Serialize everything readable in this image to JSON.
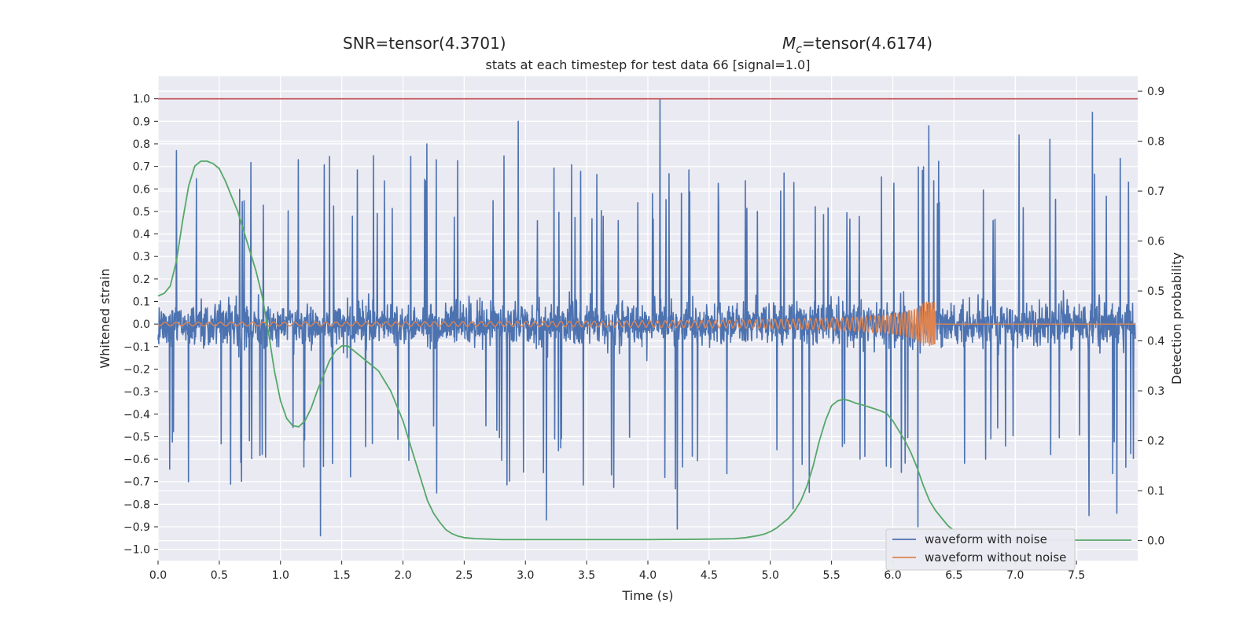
{
  "colors": {
    "background": "#eaeaf2",
    "grid": "#ffffff",
    "noisy": "#4c72b0",
    "clean": "#dd8452",
    "probability": "#55a868",
    "threshold": "#c44e52"
  },
  "chart_data": {
    "type": "line",
    "header_left": "SNR=tensor(4.3701)",
    "header_right_symbol": "M",
    "header_right_subscript": "c",
    "header_right_value": "=tensor(4.6174)",
    "title": "stats at each timestep for test data 66 [signal=1.0]",
    "xlabel": "Time (s)",
    "ylabel": "Whitened strain",
    "y2label": "Detection probability",
    "xlim": [
      0.0,
      8.0
    ],
    "ylim": [
      -1.05,
      1.1
    ],
    "y2lim": [
      -0.04,
      0.93
    ],
    "xticks": [
      "0.0",
      "0.5",
      "1.0",
      "1.5",
      "2.0",
      "2.5",
      "3.0",
      "3.5",
      "4.0",
      "4.5",
      "5.0",
      "5.5",
      "6.0",
      "6.5",
      "7.0",
      "7.5"
    ],
    "yticks": [
      "1.0",
      "0.9",
      "0.8",
      "0.7",
      "0.6",
      "0.5",
      "0.4",
      "0.3",
      "0.2",
      "0.1",
      "0.0",
      "−0.1",
      "−0.2",
      "−0.3",
      "−0.4",
      "−0.5",
      "−0.6",
      "−0.7",
      "−0.8",
      "−0.9",
      "−1.0"
    ],
    "y2ticks": [
      "0.9",
      "0.8",
      "0.7",
      "0.6",
      "0.5",
      "0.4",
      "0.3",
      "0.2",
      "0.1",
      "0.0"
    ],
    "grid": true,
    "legend_position": "lower-right",
    "threshold_line": {
      "y": 1.0
    },
    "series": [
      {
        "name": "waveform with noise",
        "axis": "left",
        "typical_amplitude": 0.38,
        "peaks": [
          {
            "x": 4.11,
            "y": 1.0
          },
          {
            "x": 7.65,
            "y": 0.94
          },
          {
            "x": 2.95,
            "y": 0.9
          },
          {
            "x": 6.31,
            "y": 0.88
          },
          {
            "x": 2.2,
            "y": 0.8
          },
          {
            "x": 7.3,
            "y": 0.82
          },
          {
            "x": 7.05,
            "y": 0.84
          },
          {
            "x": 0.15,
            "y": 0.77
          },
          {
            "x": 1.33,
            "y": -0.94
          },
          {
            "x": 4.25,
            "y": -0.91
          },
          {
            "x": 6.22,
            "y": -0.9
          },
          {
            "x": 7.62,
            "y": -0.85
          },
          {
            "x": 7.85,
            "y": -0.84
          },
          {
            "x": 5.2,
            "y": -0.82
          },
          {
            "x": 3.18,
            "y": -0.87
          },
          {
            "x": 0.25,
            "y": -0.7
          },
          {
            "x": 2.28,
            "y": -0.75
          }
        ]
      },
      {
        "name": "waveform without noise",
        "axis": "left",
        "chirp": {
          "start_amplitude": 0.008,
          "merger_time": 6.35,
          "merger_amplitude": 0.1,
          "post_merger_value": 0.0
        }
      },
      {
        "name": "",
        "axis": "right",
        "x": [
          0.0,
          0.05,
          0.1,
          0.15,
          0.2,
          0.25,
          0.3,
          0.35,
          0.4,
          0.45,
          0.5,
          0.55,
          0.6,
          0.65,
          0.7,
          0.75,
          0.8,
          0.85,
          0.9,
          0.95,
          1.0,
          1.05,
          1.1,
          1.15,
          1.2,
          1.25,
          1.3,
          1.35,
          1.4,
          1.45,
          1.5,
          1.55,
          1.6,
          1.65,
          1.7,
          1.75,
          1.8,
          1.85,
          1.9,
          1.95,
          2.0,
          2.05,
          2.1,
          2.15,
          2.2,
          2.25,
          2.3,
          2.35,
          2.4,
          2.45,
          2.5,
          2.6,
          2.7,
          2.8,
          3.0,
          3.5,
          4.0,
          4.5,
          4.7,
          4.8,
          4.9,
          4.95,
          5.0,
          5.05,
          5.1,
          5.15,
          5.2,
          5.25,
          5.3,
          5.35,
          5.4,
          5.45,
          5.5,
          5.55,
          5.6,
          5.65,
          5.7,
          5.75,
          5.8,
          5.85,
          5.9,
          5.95,
          6.0,
          6.05,
          6.1,
          6.15,
          6.2,
          6.25,
          6.3,
          6.35,
          6.4,
          6.45,
          6.5,
          6.55,
          6.6,
          6.7,
          6.8,
          7.0,
          7.5,
          7.95
        ],
        "values": [
          0.49,
          0.495,
          0.51,
          0.56,
          0.64,
          0.71,
          0.75,
          0.76,
          0.76,
          0.755,
          0.745,
          0.72,
          0.69,
          0.66,
          0.62,
          0.58,
          0.54,
          0.49,
          0.42,
          0.34,
          0.28,
          0.245,
          0.23,
          0.228,
          0.24,
          0.265,
          0.3,
          0.33,
          0.36,
          0.38,
          0.39,
          0.39,
          0.38,
          0.37,
          0.36,
          0.35,
          0.34,
          0.32,
          0.3,
          0.27,
          0.24,
          0.2,
          0.16,
          0.12,
          0.08,
          0.055,
          0.037,
          0.022,
          0.014,
          0.009,
          0.006,
          0.004,
          0.003,
          0.002,
          0.002,
          0.002,
          0.002,
          0.003,
          0.004,
          0.006,
          0.01,
          0.013,
          0.018,
          0.025,
          0.035,
          0.045,
          0.06,
          0.08,
          0.11,
          0.15,
          0.2,
          0.24,
          0.27,
          0.28,
          0.283,
          0.28,
          0.275,
          0.272,
          0.268,
          0.264,
          0.26,
          0.255,
          0.24,
          0.22,
          0.2,
          0.175,
          0.145,
          0.11,
          0.08,
          0.06,
          0.045,
          0.03,
          0.02,
          0.012,
          0.008,
          0.004,
          0.002,
          0.001,
          0.001,
          0.001
        ]
      }
    ]
  }
}
